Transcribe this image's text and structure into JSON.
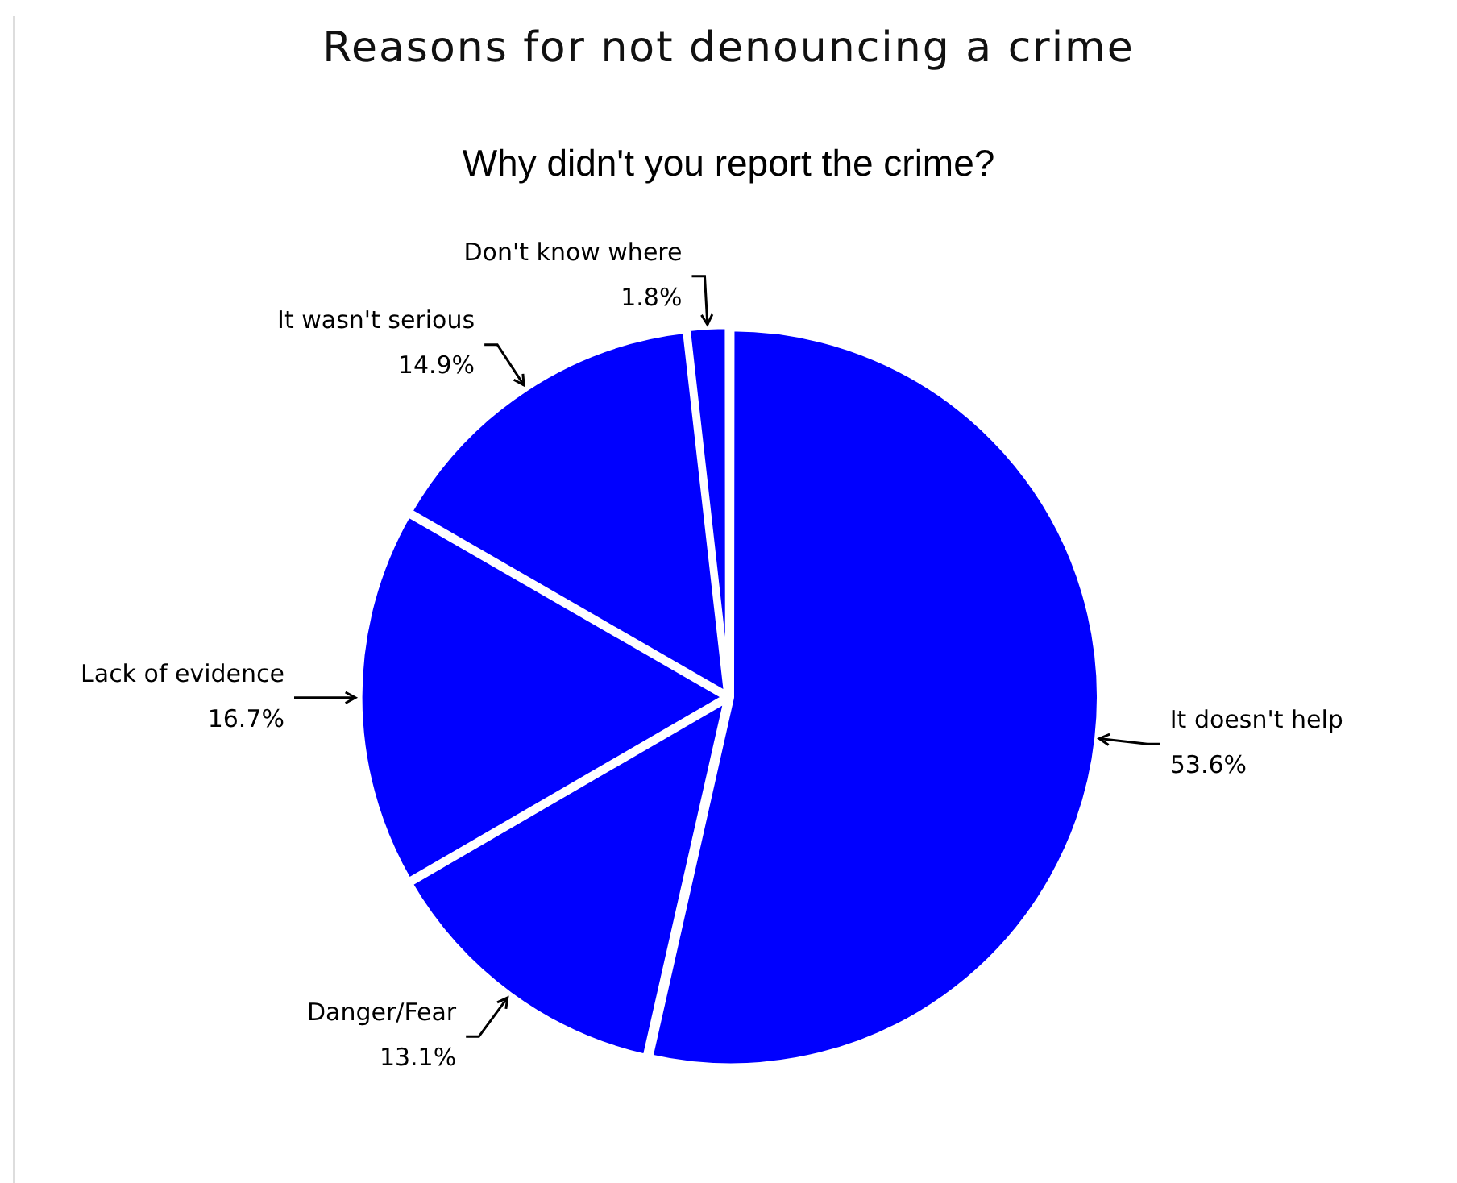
{
  "chart_data": {
    "type": "pie",
    "title": "Reasons for not denouncing a crime",
    "subtitle": "Why didn't you report the crime?",
    "categories": [
      "It doesn't help",
      "Danger/Fear",
      "Lack of evidence",
      "It wasn't serious",
      "Don't know where"
    ],
    "values": [
      53.6,
      13.1,
      16.7,
      14.9,
      1.8
    ],
    "colors": [
      "#0000ff",
      "#0000ff",
      "#0000ff",
      "#0000ff",
      "#0000ff"
    ],
    "value_labels": [
      "53.6%",
      "13.1%",
      "16.7%",
      "14.9%",
      "1.8%"
    ],
    "legend": false
  }
}
